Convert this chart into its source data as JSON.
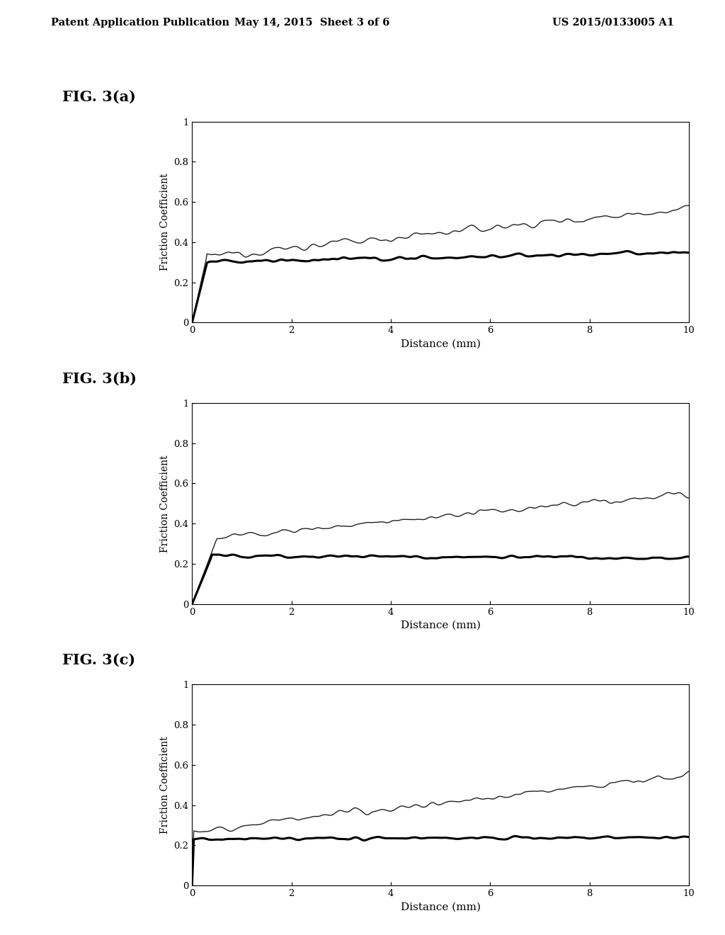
{
  "background_color": "#ffffff",
  "header_left": "Patent Application Publication",
  "header_center": "May 14, 2015  Sheet 3 of 6",
  "header_right": "US 2015/0133005 A1",
  "fig_labels": [
    "FIG. 3(a)",
    "FIG. 3(b)",
    "FIG. 3(c)"
  ],
  "xlabel": "Distance (mm)",
  "ylabel": "Friction Coefficient",
  "xlim": [
    0,
    10
  ],
  "ylim": [
    0,
    1
  ],
  "xticks": [
    0,
    2,
    4,
    6,
    8,
    10
  ],
  "ytick_vals": [
    0,
    0.2,
    0.4,
    0.6,
    0.8,
    1.0
  ],
  "ytick_labels": [
    "0",
    "0.2",
    "0.4",
    "0.6",
    "0.8",
    "1"
  ],
  "plots": [
    {
      "upper_line": {
        "x_start": 0.0,
        "y_start": 0.0,
        "x_jump": 0.3,
        "y_jump": 0.33,
        "x_end": 10.0,
        "y_end": 0.57,
        "noise": 0.022,
        "lw": 1.0,
        "color": "#222222"
      },
      "lower_line": {
        "x_start": 0.0,
        "y_start": 0.0,
        "x_jump": 0.3,
        "y_jump": 0.3,
        "x_end": 10.0,
        "y_end": 0.35,
        "noise": 0.012,
        "lw": 2.2,
        "color": "#000000"
      }
    },
    {
      "upper_line": {
        "x_start": 0.0,
        "y_start": 0.0,
        "x_jump": 0.5,
        "y_jump": 0.33,
        "x_end": 10.0,
        "y_end": 0.55,
        "noise": 0.022,
        "lw": 1.0,
        "color": "#222222"
      },
      "lower_line": {
        "x_start": 0.0,
        "y_start": 0.0,
        "x_jump": 0.4,
        "y_jump": 0.24,
        "x_end": 10.0,
        "y_end": 0.23,
        "noise": 0.01,
        "lw": 2.2,
        "color": "#000000"
      }
    },
    {
      "upper_line": {
        "x_start": 0.0,
        "y_start": 0.0,
        "x_jump": 0.0,
        "y_jump": 0.27,
        "x_end": 10.0,
        "y_end": 0.55,
        "noise": 0.02,
        "lw": 1.0,
        "color": "#222222"
      },
      "lower_line": {
        "x_start": 0.0,
        "y_start": 0.0,
        "x_jump": 0.0,
        "y_jump": 0.23,
        "x_end": 10.0,
        "y_end": 0.24,
        "noise": 0.009,
        "lw": 2.2,
        "color": "#000000"
      }
    }
  ]
}
